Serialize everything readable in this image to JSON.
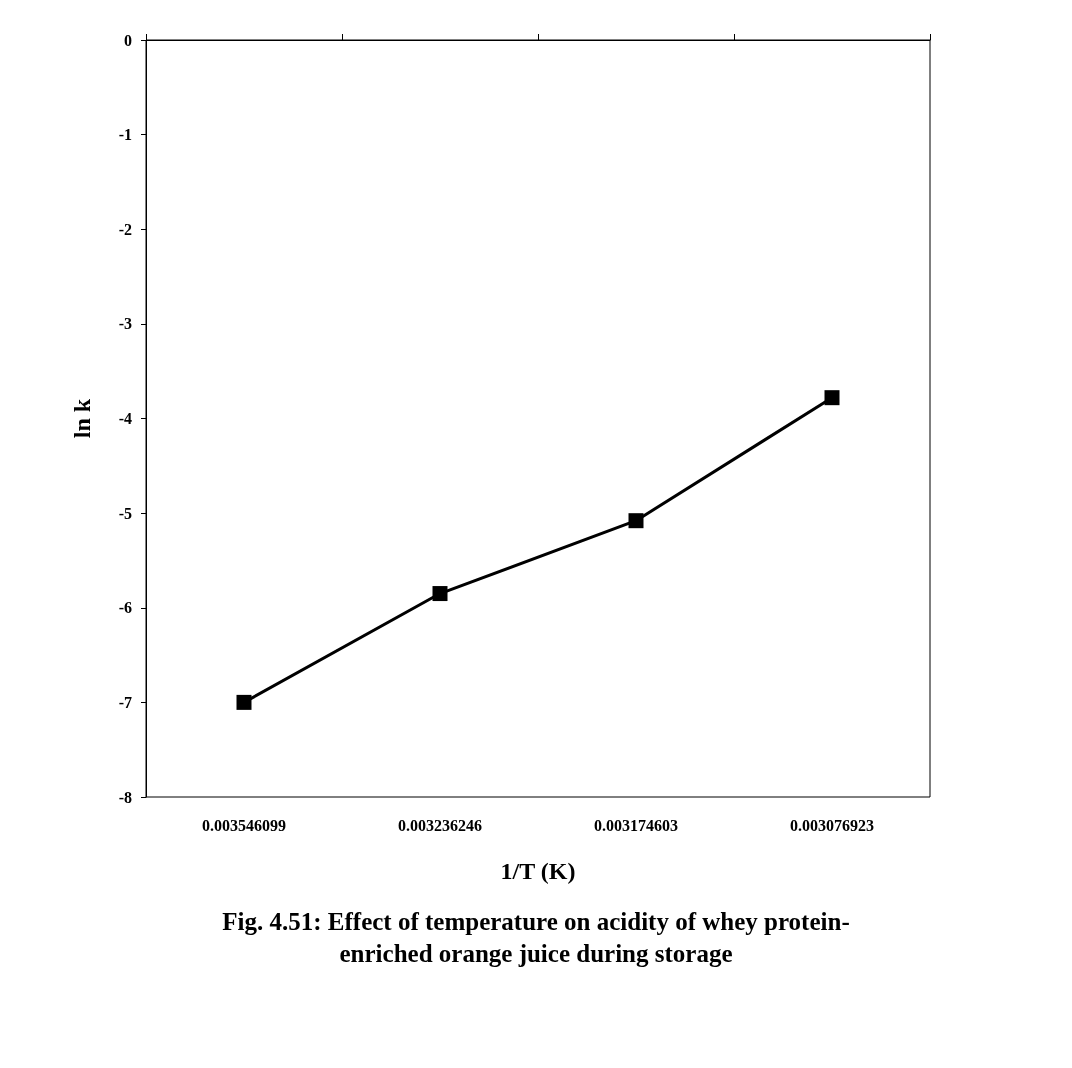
{
  "chart_data": {
    "type": "line",
    "title": "Fig. 4.51: Effect of temperature on acidity of whey protein-\nenriched orange juice during storage",
    "xlabel": "1/T (K)",
    "ylabel": "ln k",
    "categories": [
      "0.003546099",
      "0.003236246",
      "0.003174603",
      "0.003076923"
    ],
    "series": [
      {
        "color": "#000000",
        "values": [
          -7.0,
          -5.85,
          -5.08,
          -3.78
        ]
      }
    ],
    "ylim": [
      -8,
      0
    ],
    "yticks": [
      -8,
      -7,
      -6,
      -5,
      -4,
      -3,
      -2,
      -1,
      0
    ],
    "grid": false,
    "marker": "square",
    "line_style": "solid"
  }
}
